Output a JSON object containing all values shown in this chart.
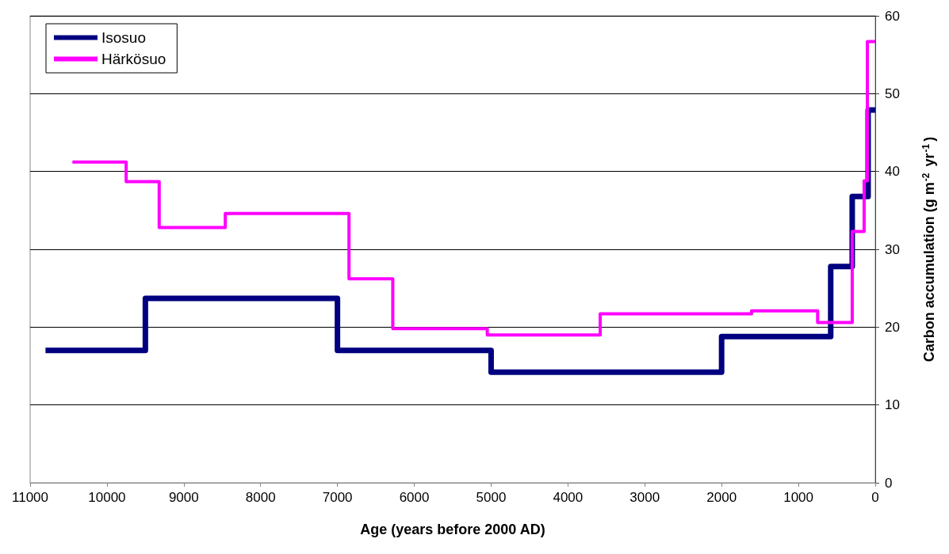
{
  "chart_data": {
    "type": "step",
    "xlabel": "Age (years before 2000 AD)",
    "ylabel": "Carbon accumulation (g m$^{-2}$ yr$^{-1}$)",
    "series": [
      {
        "name": "Isosuo",
        "color": "#000080",
        "x": [
          10800,
          9500,
          7000,
          5000,
          2000,
          580,
          300,
          93,
          0
        ],
        "values": [
          17.0,
          23.7,
          17.0,
          14.2,
          18.8,
          27.8,
          36.8,
          47.9,
          47.9
        ]
      },
      {
        "name": "Härkösuo",
        "color": "#ff00ff",
        "x": [
          10450,
          9750,
          9320,
          8460,
          6850,
          6280,
          5050,
          3580,
          1610,
          750,
          300,
          145,
          103,
          0
        ],
        "values": [
          41.2,
          38.7,
          32.8,
          34.6,
          26.2,
          19.8,
          19.0,
          21.7,
          22.1,
          20.6,
          32.3,
          38.8,
          56.7,
          56.7
        ]
      }
    ],
    "xlim": [
      11000,
      0
    ],
    "xticks": [
      11000,
      10000,
      9000,
      8000,
      7000,
      6000,
      5000,
      4000,
      3000,
      2000,
      1000,
      0
    ],
    "ylim": [
      0,
      60
    ],
    "yticks": [
      0,
      10,
      20,
      30,
      40,
      50,
      60
    ],
    "grid": "y",
    "legend": "top left",
    "marker": "none",
    "line_style": "solid"
  }
}
